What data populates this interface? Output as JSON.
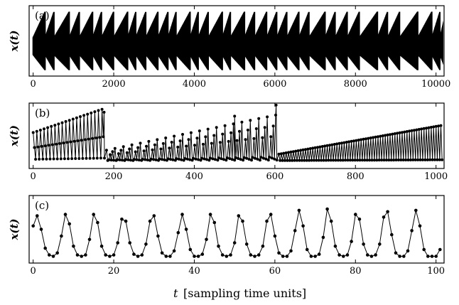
{
  "figure": {
    "xlabel_var": "t",
    "xlabel_unit": "[sampling time units]"
  },
  "chart_data": [
    {
      "type": "line",
      "panel_label": "(a)",
      "ylabel": "x(t)",
      "xlim": [
        -100,
        10200
      ],
      "xticks": [
        0,
        2000,
        4000,
        6000,
        8000,
        10000
      ],
      "ylim": [
        0,
        1
      ],
      "marker": "none",
      "description_of_series": "dense oscillation with sawtooth envelope",
      "series": [
        {
          "envelope_reset_times": [
            0,
            300,
            520,
            900,
            1150,
            1480,
            1700,
            2000,
            2350,
            2550,
            2800,
            3100,
            3350,
            3550,
            3900,
            4100,
            4350,
            4700,
            4900,
            5250,
            5500,
            5800,
            6050,
            6300,
            6600,
            6850,
            7250,
            7500,
            7800,
            8100,
            8550,
            8800,
            9100,
            9550,
            9900,
            10100
          ],
          "baseline": 0.08,
          "peak": 0.92
        }
      ]
    },
    {
      "type": "line",
      "panel_label": "(b)",
      "ylabel": "x(t)",
      "xlim": [
        -10,
        1020
      ],
      "xticks": [
        0,
        200,
        400,
        600,
        800,
        1000
      ],
      "ylim": [
        0,
        1
      ],
      "marker": "circle",
      "series": [
        {
          "segments": [
            {
              "start": 0,
              "end": 178,
              "base": 0.12,
              "peak_start": 0.55,
              "peak_end": 0.92,
              "period": 9
            },
            {
              "start": 182,
              "end": 605,
              "base": 0.12,
              "peak_start": 0.28,
              "peak_end": 0.82,
              "period": 7
            },
            {
              "start": 610,
              "end": 1015,
              "base": 0.12,
              "peak_start": 0.22,
              "peak_end": 0.66,
              "period": 6
            }
          ],
          "spikes": [
            {
              "x": 176,
              "y": 0.86
            },
            {
              "x": 500,
              "y": 0.8
            },
            {
              "x": 603,
              "y": 0.97
            }
          ]
        }
      ]
    },
    {
      "type": "line",
      "panel_label": "(c)",
      "ylabel": "x(t)",
      "xlim": [
        -1,
        102
      ],
      "xticks": [
        0,
        20,
        40,
        60,
        80,
        100
      ],
      "ylim": [
        0,
        1
      ],
      "marker": "circle",
      "series": [
        {
          "x": [
            0,
            1,
            2,
            3,
            4,
            5,
            6,
            7,
            8,
            9,
            10,
            11,
            12,
            13,
            14,
            15,
            16,
            17,
            18,
            19,
            20,
            21,
            22,
            23,
            24,
            25,
            26,
            27,
            28,
            29,
            30,
            31,
            32,
            33,
            34,
            35,
            36,
            37,
            38,
            39,
            40,
            41,
            42,
            43,
            44,
            45,
            46,
            47,
            48,
            49,
            50,
            51,
            52,
            53,
            54,
            55,
            56,
            57,
            58,
            59,
            60,
            61,
            62,
            63,
            64,
            65,
            66,
            67,
            68,
            69,
            70,
            71,
            72,
            73,
            74,
            75,
            76,
            77,
            78,
            79,
            80,
            81,
            82,
            83,
            84,
            85,
            86,
            87,
            88,
            89,
            90,
            91,
            92,
            93,
            94,
            95,
            96,
            97,
            98,
            99,
            100,
            101
          ],
          "y": [
            0.55,
            0.7,
            0.5,
            0.22,
            0.12,
            0.1,
            0.15,
            0.4,
            0.72,
            0.58,
            0.25,
            0.12,
            0.1,
            0.12,
            0.35,
            0.72,
            0.6,
            0.25,
            0.12,
            0.1,
            0.12,
            0.3,
            0.65,
            0.62,
            0.3,
            0.13,
            0.1,
            0.12,
            0.28,
            0.62,
            0.7,
            0.4,
            0.15,
            0.1,
            0.1,
            0.18,
            0.45,
            0.72,
            0.5,
            0.2,
            0.1,
            0.1,
            0.13,
            0.35,
            0.72,
            0.6,
            0.25,
            0.12,
            0.1,
            0.12,
            0.3,
            0.7,
            0.62,
            0.28,
            0.12,
            0.1,
            0.12,
            0.25,
            0.62,
            0.72,
            0.4,
            0.15,
            0.1,
            0.1,
            0.18,
            0.48,
            0.78,
            0.55,
            0.2,
            0.1,
            0.1,
            0.13,
            0.38,
            0.8,
            0.62,
            0.25,
            0.12,
            0.1,
            0.12,
            0.32,
            0.72,
            0.65,
            0.28,
            0.12,
            0.1,
            0.12,
            0.28,
            0.68,
            0.76,
            0.42,
            0.15,
            0.1,
            0.1,
            0.18,
            0.48,
            0.78,
            0.55,
            0.2,
            0.1,
            0.1,
            0.1,
            0.2
          ]
        }
      ]
    }
  ]
}
